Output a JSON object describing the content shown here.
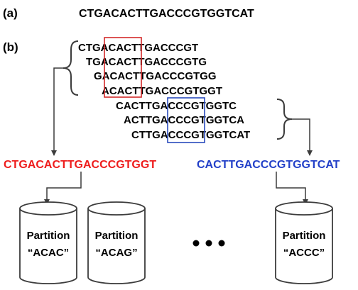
{
  "panel_a": {
    "label": "(a)",
    "sequence": "CTGACACTTGACCCGTGGTCAT"
  },
  "panel_b": {
    "label": "(b)",
    "kmers_group1": [
      "CTGACACTTGACCCGT",
      "TGACACTTGACCCGTG",
      "GACACTTGACCCGTGG",
      "ACACTTGACCCGTGGT"
    ],
    "kmers_group2": [
      "CACTTGACCCGTGGTC",
      "ACTTGACCCGTGGTCA",
      "CTTGACCCGTGGTCAT"
    ],
    "merged_red": "CTGACACTTGACCCGTGGT",
    "merged_blue": "CACTTGACCCGTGGTCAT",
    "partitions": [
      {
        "line1": "Partition",
        "line2": "“ACAC”"
      },
      {
        "line1": "Partition",
        "line2": "“ACAG”"
      },
      {
        "line1": "Partition",
        "line2": "“ACCC”"
      }
    ]
  },
  "colors": {
    "red": "#ee1c1c",
    "blue": "#2340c8",
    "box_red": "#d42a2a",
    "box_blue": "#2a4bbd",
    "text": "#000000",
    "stroke": "#3c3c3c"
  }
}
